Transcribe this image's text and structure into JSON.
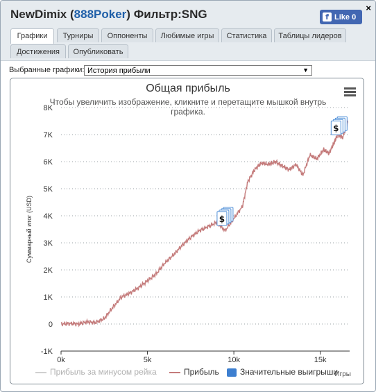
{
  "window": {
    "title_user": "NewDimix",
    "title_site": "888Poker",
    "title_filter": "Фильтр:SNG",
    "like_label": "Like 0",
    "close_glyph": "×"
  },
  "tabs": [
    {
      "label": "Графики",
      "active": true
    },
    {
      "label": "Турниры"
    },
    {
      "label": "Оппоненты"
    },
    {
      "label": "Любимые игры"
    },
    {
      "label": "Статистика"
    },
    {
      "label": "Таблицы лидеров"
    },
    {
      "label": "Достижения"
    },
    {
      "label": "Опубликовать"
    }
  ],
  "selector": {
    "label": "Выбранные графики:",
    "value": "История прибыли"
  },
  "chart_data": {
    "type": "line",
    "title": "Общая прибыль",
    "subtitle": "Чтобы увеличить изображение, кликните и перетащите мышкой внутрь графика.",
    "ylabel": "Суммарный итог (USD)",
    "xlabel": "Игры",
    "ylim": [
      -1000,
      8000
    ],
    "xlim": [
      0,
      16700
    ],
    "y_ticks": [
      "-1K",
      "0",
      "1K",
      "2K",
      "3K",
      "4K",
      "5K",
      "6K",
      "7K",
      "8K"
    ],
    "x_ticks": [
      "0k",
      "5k",
      "10k",
      "15k"
    ],
    "legend": [
      "Прибыль за минусом рейка",
      "Прибыль",
      "Значительные выигрыши"
    ],
    "series": [
      {
        "name": "Прибыль",
        "color": "#c47b7b",
        "x": [
          0,
          500,
          1000,
          1500,
          2000,
          2500,
          3000,
          3500,
          4000,
          4500,
          5000,
          5500,
          6000,
          6500,
          7000,
          7500,
          8000,
          8500,
          9000,
          9500,
          10000,
          10500,
          10800,
          11200,
          11600,
          12000,
          12400,
          12800,
          13200,
          13600,
          14000,
          14400,
          14800,
          15200,
          15500,
          15800,
          16000,
          16300,
          16600
        ],
        "y": [
          0,
          20,
          0,
          80,
          50,
          200,
          620,
          1000,
          1150,
          1350,
          1600,
          1850,
          2250,
          2550,
          2900,
          3200,
          3450,
          3600,
          3750,
          3450,
          3900,
          4350,
          5250,
          5700,
          5950,
          5900,
          6000,
          5850,
          5700,
          5900,
          5500,
          6250,
          6100,
          6450,
          6300,
          6700,
          7000,
          6900,
          7450
        ]
      }
    ],
    "big_wins": [
      {
        "x": 9350,
        "y": 3850
      },
      {
        "x": 15950,
        "y": 7200
      }
    ]
  }
}
